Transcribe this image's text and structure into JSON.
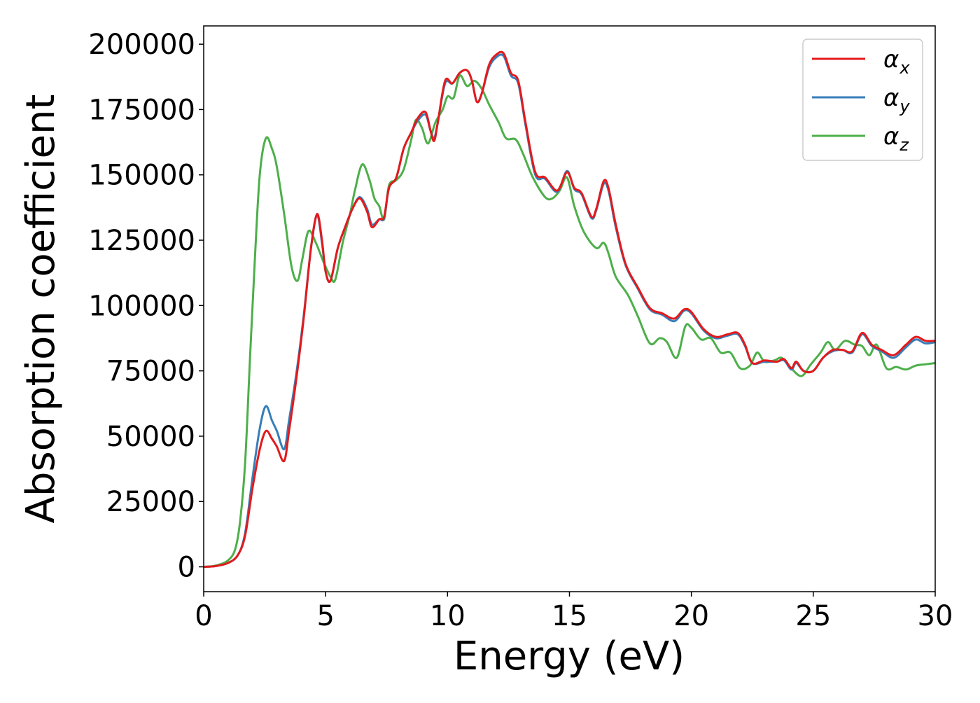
{
  "chart_data": {
    "type": "line",
    "title": "",
    "xlabel": "Energy (eV)",
    "ylabel": "Absorption coefficient",
    "xlim": [
      0,
      30
    ],
    "ylim": [
      -9500,
      207000
    ],
    "xticks": [
      0,
      5,
      10,
      15,
      20,
      25,
      30
    ],
    "xtick_labels": [
      "0",
      "5",
      "10",
      "15",
      "20",
      "25",
      "30"
    ],
    "yticks": [
      0,
      25000,
      50000,
      75000,
      100000,
      125000,
      150000,
      175000,
      200000
    ],
    "ytick_labels": [
      "0",
      "25000",
      "50000",
      "75000",
      "100000",
      "125000",
      "150000",
      "175000",
      "200000"
    ],
    "grid": false,
    "legend_position": "top-right",
    "series": [
      {
        "name": "αx",
        "symbol": "α",
        "subscript": "x",
        "color": "#e41a1c",
        "points": [
          [
            0,
            0
          ],
          [
            0.5,
            300
          ],
          [
            1.0,
            1500
          ],
          [
            1.4,
            4500
          ],
          [
            1.7,
            12000
          ],
          [
            2.0,
            30000
          ],
          [
            2.3,
            45000
          ],
          [
            2.55,
            52000
          ],
          [
            2.8,
            49000
          ],
          [
            3.0,
            46000
          ],
          [
            3.3,
            40500
          ],
          [
            3.5,
            52000
          ],
          [
            3.8,
            72000
          ],
          [
            4.1,
            95000
          ],
          [
            4.4,
            122000
          ],
          [
            4.65,
            135000
          ],
          [
            4.85,
            125000
          ],
          [
            5.0,
            113000
          ],
          [
            5.2,
            109500
          ],
          [
            5.5,
            122000
          ],
          [
            5.8,
            130000
          ],
          [
            6.1,
            137000
          ],
          [
            6.4,
            141000
          ],
          [
            6.7,
            136000
          ],
          [
            6.9,
            130000
          ],
          [
            7.2,
            133000
          ],
          [
            7.4,
            134000
          ],
          [
            7.6,
            145000
          ],
          [
            7.9,
            149000
          ],
          [
            8.2,
            160000
          ],
          [
            8.5,
            166000
          ],
          [
            8.8,
            172000
          ],
          [
            9.1,
            174000
          ],
          [
            9.3,
            167000
          ],
          [
            9.45,
            163000
          ],
          [
            9.6,
            170000
          ],
          [
            9.9,
            186000
          ],
          [
            10.2,
            185000
          ],
          [
            10.5,
            189000
          ],
          [
            10.8,
            190000
          ],
          [
            11.0,
            186000
          ],
          [
            11.2,
            178000
          ],
          [
            11.4,
            181000
          ],
          [
            11.7,
            192000
          ],
          [
            12.0,
            196000
          ],
          [
            12.3,
            196500
          ],
          [
            12.6,
            189000
          ],
          [
            12.9,
            186000
          ],
          [
            13.2,
            170000
          ],
          [
            13.6,
            151000
          ],
          [
            14.0,
            149000
          ],
          [
            14.5,
            144000
          ],
          [
            14.9,
            151000
          ],
          [
            15.2,
            145000
          ],
          [
            15.5,
            143000
          ],
          [
            15.9,
            134000
          ],
          [
            16.1,
            137000
          ],
          [
            16.4,
            147500
          ],
          [
            16.6,
            145000
          ],
          [
            16.9,
            131000
          ],
          [
            17.3,
            116000
          ],
          [
            17.8,
            107000
          ],
          [
            18.3,
            99000
          ],
          [
            18.8,
            97000
          ],
          [
            19.3,
            95000
          ],
          [
            19.7,
            98500
          ],
          [
            20.0,
            97500
          ],
          [
            20.5,
            91000
          ],
          [
            21.0,
            88000
          ],
          [
            21.5,
            89000
          ],
          [
            21.9,
            89500
          ],
          [
            22.2,
            85000
          ],
          [
            22.5,
            78000
          ],
          [
            23.0,
            79000
          ],
          [
            23.5,
            78500
          ],
          [
            23.8,
            79500
          ],
          [
            24.1,
            76000
          ],
          [
            24.3,
            78500
          ],
          [
            24.6,
            75000
          ],
          [
            25.0,
            75000
          ],
          [
            25.4,
            80000
          ],
          [
            25.8,
            83000
          ],
          [
            26.2,
            83000
          ],
          [
            26.6,
            82500
          ],
          [
            27.0,
            89500
          ],
          [
            27.4,
            85000
          ],
          [
            27.8,
            83000
          ],
          [
            28.3,
            81000
          ],
          [
            28.8,
            85000
          ],
          [
            29.2,
            88000
          ],
          [
            29.6,
            86500
          ],
          [
            30.0,
            86500
          ]
        ]
      },
      {
        "name": "αy",
        "symbol": "α",
        "subscript": "y",
        "color": "#377eb8",
        "points": [
          [
            0,
            0
          ],
          [
            0.5,
            300
          ],
          [
            1.0,
            1500
          ],
          [
            1.4,
            4500
          ],
          [
            1.7,
            13000
          ],
          [
            2.0,
            34000
          ],
          [
            2.3,
            53000
          ],
          [
            2.55,
            61500
          ],
          [
            2.8,
            56000
          ],
          [
            3.0,
            52000
          ],
          [
            3.3,
            45000
          ],
          [
            3.5,
            56000
          ],
          [
            3.8,
            74000
          ],
          [
            4.1,
            96000
          ],
          [
            4.4,
            122000
          ],
          [
            4.65,
            134500
          ],
          [
            4.85,
            124000
          ],
          [
            5.0,
            113000
          ],
          [
            5.2,
            109500
          ],
          [
            5.5,
            122000
          ],
          [
            5.8,
            130000
          ],
          [
            6.1,
            137000
          ],
          [
            6.4,
            141500
          ],
          [
            6.7,
            137000
          ],
          [
            6.9,
            131000
          ],
          [
            7.2,
            133000
          ],
          [
            7.4,
            133500
          ],
          [
            7.6,
            145000
          ],
          [
            7.9,
            149000
          ],
          [
            8.2,
            160000
          ],
          [
            8.5,
            166000
          ],
          [
            8.8,
            171000
          ],
          [
            9.1,
            173000
          ],
          [
            9.3,
            167000
          ],
          [
            9.45,
            164000
          ],
          [
            9.6,
            170000
          ],
          [
            9.9,
            185000
          ],
          [
            10.2,
            185000
          ],
          [
            10.5,
            189000
          ],
          [
            10.8,
            190000
          ],
          [
            11.0,
            186000
          ],
          [
            11.2,
            178000
          ],
          [
            11.4,
            181000
          ],
          [
            11.7,
            191000
          ],
          [
            12.0,
            195000
          ],
          [
            12.3,
            195500
          ],
          [
            12.6,
            188000
          ],
          [
            12.9,
            185000
          ],
          [
            13.2,
            169000
          ],
          [
            13.6,
            150000
          ],
          [
            14.0,
            148500
          ],
          [
            14.5,
            143500
          ],
          [
            14.9,
            151500
          ],
          [
            15.2,
            144500
          ],
          [
            15.5,
            142500
          ],
          [
            15.9,
            133500
          ],
          [
            16.1,
            136500
          ],
          [
            16.4,
            146500
          ],
          [
            16.6,
            144000
          ],
          [
            16.9,
            130000
          ],
          [
            17.3,
            115500
          ],
          [
            17.8,
            106500
          ],
          [
            18.3,
            98500
          ],
          [
            18.8,
            96500
          ],
          [
            19.3,
            94000
          ],
          [
            19.7,
            98000
          ],
          [
            20.0,
            97000
          ],
          [
            20.5,
            90500
          ],
          [
            21.0,
            87500
          ],
          [
            21.5,
            88500
          ],
          [
            21.9,
            89000
          ],
          [
            22.2,
            84500
          ],
          [
            22.5,
            78000
          ],
          [
            23.0,
            78500
          ],
          [
            23.5,
            78500
          ],
          [
            23.8,
            79000
          ],
          [
            24.1,
            75500
          ],
          [
            24.3,
            78000
          ],
          [
            24.6,
            75000
          ],
          [
            25.0,
            75000
          ],
          [
            25.4,
            80000
          ],
          [
            25.8,
            82500
          ],
          [
            26.2,
            83000
          ],
          [
            26.6,
            82000
          ],
          [
            27.0,
            89000
          ],
          [
            27.4,
            84500
          ],
          [
            27.8,
            82500
          ],
          [
            28.3,
            80000
          ],
          [
            28.8,
            84000
          ],
          [
            29.2,
            87000
          ],
          [
            29.6,
            85500
          ],
          [
            30.0,
            86000
          ]
        ]
      },
      {
        "name": "αz",
        "symbol": "α",
        "subscript": "z",
        "color": "#4daf4a",
        "points": [
          [
            0,
            0
          ],
          [
            0.5,
            500
          ],
          [
            1.0,
            2500
          ],
          [
            1.3,
            7000
          ],
          [
            1.5,
            18000
          ],
          [
            1.7,
            40000
          ],
          [
            1.9,
            80000
          ],
          [
            2.1,
            118000
          ],
          [
            2.3,
            150000
          ],
          [
            2.55,
            164000
          ],
          [
            2.8,
            160000
          ],
          [
            3.0,
            153000
          ],
          [
            3.3,
            135000
          ],
          [
            3.6,
            115000
          ],
          [
            3.85,
            109500
          ],
          [
            4.05,
            118000
          ],
          [
            4.3,
            128500
          ],
          [
            4.6,
            124000
          ],
          [
            4.9,
            117000
          ],
          [
            5.2,
            111000
          ],
          [
            5.4,
            110000
          ],
          [
            5.7,
            124000
          ],
          [
            6.0,
            135000
          ],
          [
            6.2,
            144000
          ],
          [
            6.5,
            154000
          ],
          [
            6.8,
            148000
          ],
          [
            7.0,
            141000
          ],
          [
            7.2,
            138000
          ],
          [
            7.4,
            133000
          ],
          [
            7.6,
            146000
          ],
          [
            7.9,
            148000
          ],
          [
            8.2,
            152000
          ],
          [
            8.5,
            163000
          ],
          [
            8.7,
            171000
          ],
          [
            8.95,
            168000
          ],
          [
            9.2,
            162000
          ],
          [
            9.5,
            170000
          ],
          [
            9.8,
            175000
          ],
          [
            10.0,
            180000
          ],
          [
            10.25,
            179500
          ],
          [
            10.5,
            188000
          ],
          [
            10.8,
            184000
          ],
          [
            11.1,
            186000
          ],
          [
            11.4,
            183000
          ],
          [
            11.7,
            177000
          ],
          [
            12.1,
            170000
          ],
          [
            12.4,
            164000
          ],
          [
            12.8,
            163500
          ],
          [
            13.1,
            158000
          ],
          [
            13.5,
            149000
          ],
          [
            14.0,
            141500
          ],
          [
            14.3,
            141000
          ],
          [
            14.6,
            144000
          ],
          [
            14.9,
            149000
          ],
          [
            15.2,
            138000
          ],
          [
            15.6,
            128000
          ],
          [
            16.1,
            122000
          ],
          [
            16.4,
            124000
          ],
          [
            16.6,
            120000
          ],
          [
            16.9,
            111000
          ],
          [
            17.4,
            104000
          ],
          [
            17.8,
            96000
          ],
          [
            18.3,
            85500
          ],
          [
            18.7,
            87500
          ],
          [
            19.0,
            86000
          ],
          [
            19.4,
            80000
          ],
          [
            19.75,
            92000
          ],
          [
            20.0,
            91500
          ],
          [
            20.4,
            87000
          ],
          [
            20.8,
            87500
          ],
          [
            21.2,
            82000
          ],
          [
            21.6,
            82000
          ],
          [
            22.0,
            76000
          ],
          [
            22.4,
            77000
          ],
          [
            22.7,
            82000
          ],
          [
            23.0,
            78500
          ],
          [
            23.4,
            79000
          ],
          [
            23.7,
            80000
          ],
          [
            24.0,
            77000
          ],
          [
            24.5,
            73000
          ],
          [
            24.9,
            77500
          ],
          [
            25.3,
            82000
          ],
          [
            25.6,
            86000
          ],
          [
            25.9,
            83000
          ],
          [
            26.3,
            86500
          ],
          [
            26.7,
            85000
          ],
          [
            27.0,
            84500
          ],
          [
            27.3,
            81000
          ],
          [
            27.6,
            85000
          ],
          [
            28.0,
            76000
          ],
          [
            28.4,
            76500
          ],
          [
            28.8,
            75500
          ],
          [
            29.2,
            77000
          ],
          [
            29.6,
            77500
          ],
          [
            30.0,
            78000
          ]
        ]
      }
    ]
  }
}
